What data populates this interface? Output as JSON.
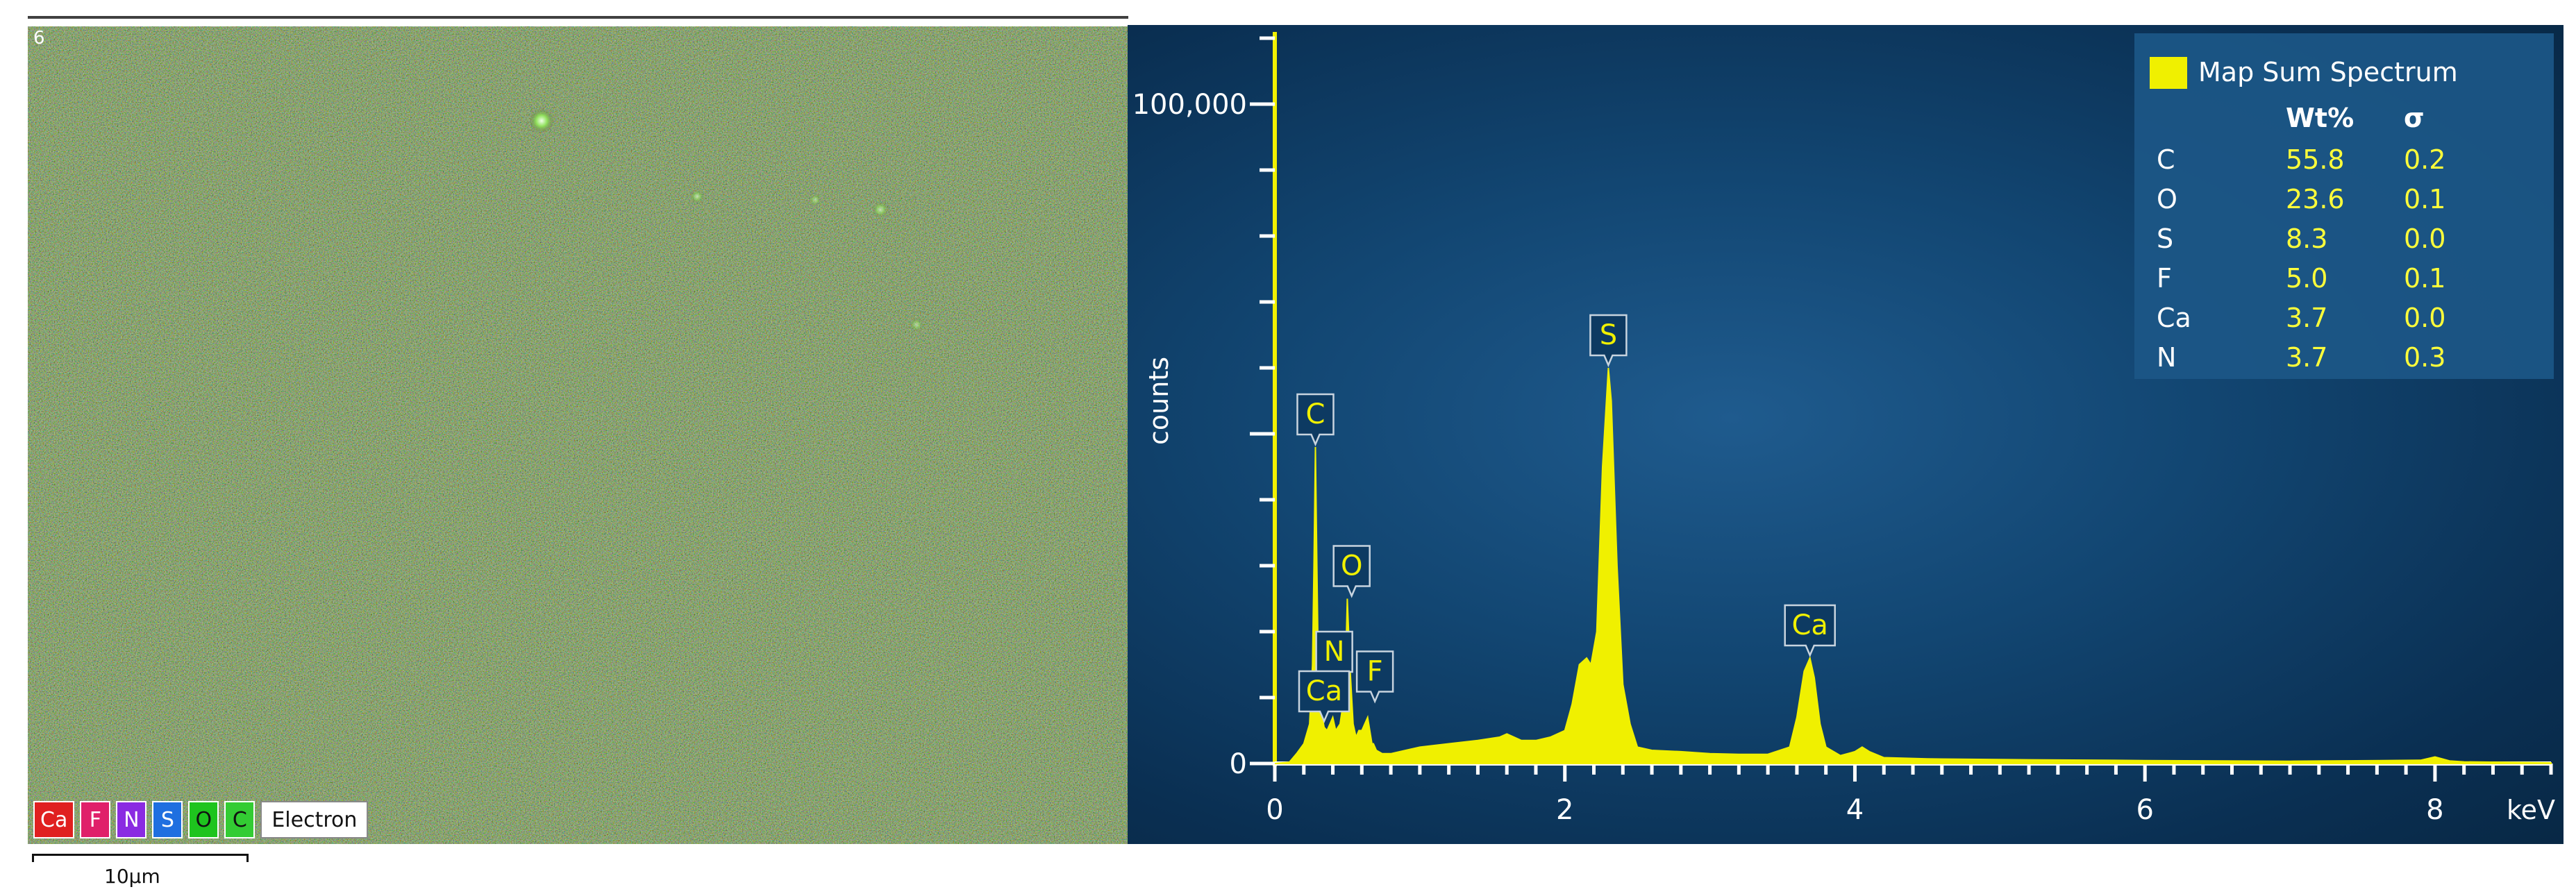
{
  "map": {
    "index_label": "6",
    "legend": [
      {
        "label": "Ca",
        "color": "#e02020"
      },
      {
        "label": "F",
        "color": "#e0206a"
      },
      {
        "label": "N",
        "color": "#8a2be2"
      },
      {
        "label": "S",
        "color": "#1f6fe0"
      },
      {
        "label": "O",
        "color": "#1ec41e"
      },
      {
        "label": "C",
        "color": "#33cc33"
      },
      {
        "label": "Electron",
        "color": "#ffffff"
      }
    ],
    "scale_bar": "10µm"
  },
  "spectrum_legend": {
    "title": "Map Sum Spectrum",
    "col_wt": "Wt%",
    "col_sigma": "σ",
    "rows": [
      {
        "element": "C",
        "wt": "55.8",
        "sigma": "0.2"
      },
      {
        "element": "O",
        "wt": "23.6",
        "sigma": "0.1"
      },
      {
        "element": "S",
        "wt": "8.3",
        "sigma": "0.0"
      },
      {
        "element": "F",
        "wt": "5.0",
        "sigma": "0.1"
      },
      {
        "element": "Ca",
        "wt": "3.7",
        "sigma": "0.0"
      },
      {
        "element": "N",
        "wt": "3.7",
        "sigma": "0.3"
      }
    ]
  },
  "chart_data": {
    "type": "area",
    "xlabel": "keV",
    "ylabel": "counts",
    "xlim": [
      0,
      8.8
    ],
    "ylim": [
      0,
      112000
    ],
    "xticks": [
      0,
      2,
      4,
      6,
      8
    ],
    "xtick_labels": [
      "0",
      "2",
      "4",
      "6",
      "8"
    ],
    "yticks": [
      0,
      100000
    ],
    "ytick_labels": [
      "0",
      "100,000"
    ],
    "grid": false,
    "series": [
      {
        "name": "Map Sum Spectrum",
        "color": "#f0f000",
        "x": [
          0.0,
          0.1,
          0.15,
          0.2,
          0.24,
          0.26,
          0.27,
          0.28,
          0.29,
          0.3,
          0.32,
          0.34,
          0.36,
          0.38,
          0.4,
          0.42,
          0.45,
          0.47,
          0.49,
          0.5,
          0.52,
          0.54,
          0.56,
          0.58,
          0.6,
          0.64,
          0.67,
          0.68,
          0.7,
          0.74,
          0.8,
          1.0,
          1.2,
          1.4,
          1.55,
          1.6,
          1.65,
          1.7,
          1.8,
          1.9,
          2.0,
          2.05,
          2.1,
          2.15,
          2.18,
          2.22,
          2.26,
          2.3,
          2.32,
          2.36,
          2.4,
          2.45,
          2.5,
          2.6,
          2.8,
          3.0,
          3.2,
          3.4,
          3.55,
          3.6,
          3.65,
          3.69,
          3.72,
          3.76,
          3.8,
          3.9,
          4.0,
          4.05,
          4.1,
          4.2,
          4.5,
          5.0,
          6.0,
          7.0,
          7.9,
          8.0,
          8.05,
          8.1,
          8.2,
          8.8
        ],
        "y": [
          0,
          200,
          1500,
          3000,
          6000,
          15000,
          30000,
          48000,
          30000,
          14000,
          8000,
          5500,
          5000,
          6000,
          7000,
          5000,
          6000,
          9000,
          16000,
          25000,
          14000,
          6000,
          4000,
          5000,
          5000,
          7000,
          3000,
          3000,
          2000,
          1500,
          1500,
          2500,
          3000,
          3500,
          4000,
          4500,
          4000,
          3500,
          3500,
          4000,
          5000,
          9000,
          15000,
          16000,
          15000,
          20000,
          45000,
          60000,
          55000,
          30000,
          12000,
          6000,
          2500,
          2000,
          1800,
          1500,
          1400,
          1400,
          2500,
          7000,
          14000,
          16000,
          13000,
          6000,
          2500,
          1200,
          1800,
          2500,
          1800,
          900,
          700,
          600,
          450,
          350,
          500,
          1000,
          700,
          400,
          250,
          100
        ]
      }
    ],
    "peak_labels": [
      {
        "label": "C",
        "x": 0.28,
        "y": 48000
      },
      {
        "label": "O",
        "x": 0.53,
        "y": 25000
      },
      {
        "label": "N",
        "x": 0.41,
        "y": 12000
      },
      {
        "label": "Ca",
        "x": 0.34,
        "y": 6000
      },
      {
        "label": "F",
        "x": 0.69,
        "y": 9000
      },
      {
        "label": "S",
        "x": 2.3,
        "y": 60000
      },
      {
        "label": "Ca",
        "x": 3.69,
        "y": 16000
      }
    ]
  }
}
